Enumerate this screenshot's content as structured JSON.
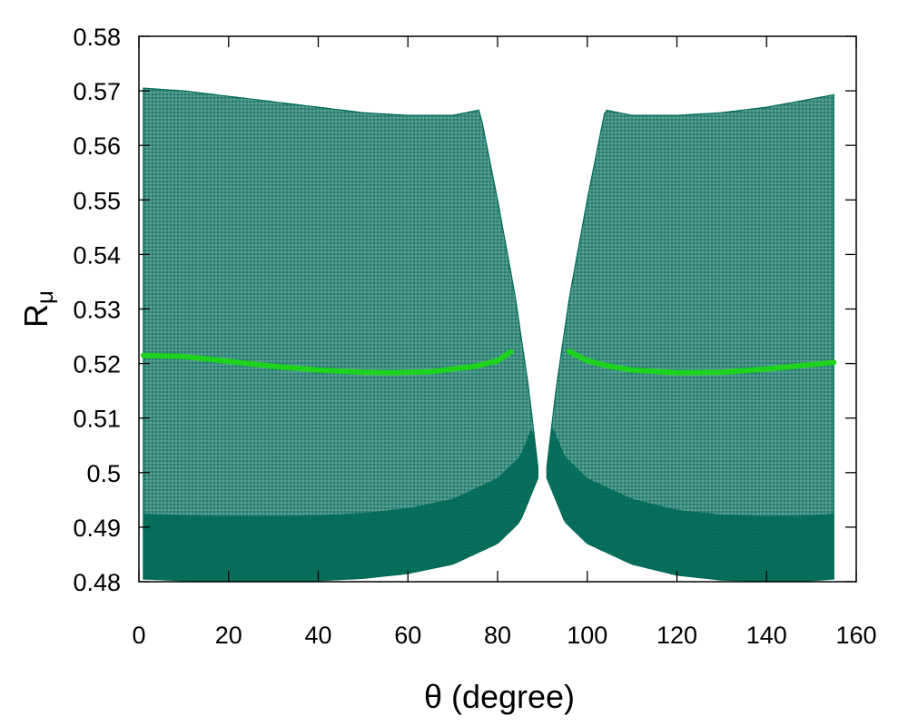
{
  "chart_data": {
    "type": "scatter",
    "title": "",
    "xlabel": "θ (degree)",
    "ylabel_main": "R",
    "ylabel_sub": "μ",
    "xlim": [
      0,
      160
    ],
    "ylim": [
      0.48,
      0.58
    ],
    "xticks": [
      0,
      20,
      40,
      60,
      80,
      100,
      120,
      140,
      160
    ],
    "yticks": [
      0.48,
      0.49,
      0.5,
      0.51,
      0.52,
      0.53,
      0.54,
      0.55,
      0.56,
      0.57,
      0.58
    ],
    "ytick_labels": [
      "0.48",
      "0.49",
      "0.5",
      "0.51",
      "0.52",
      "0.53",
      "0.54",
      "0.55",
      "0.56",
      "0.57",
      "0.58"
    ],
    "grid": false,
    "legend": "none",
    "colors": {
      "scatter": "#006957",
      "curve": "#1ed21e"
    },
    "series": [
      {
        "kind": "band",
        "marker": "+",
        "lower_x": [
          1,
          10,
          20,
          30,
          40,
          50,
          60,
          70,
          80,
          85,
          89
        ],
        "lower_y": [
          0.4805,
          0.4802,
          0.4801,
          0.4801,
          0.4802,
          0.4806,
          0.4815,
          0.4832,
          0.487,
          0.491,
          0.499
        ],
        "upper_x": [
          1,
          10,
          20,
          30,
          40,
          50,
          60,
          70,
          76,
          80,
          84,
          87,
          89
        ],
        "upper_y": [
          0.5705,
          0.57,
          0.569,
          0.568,
          0.567,
          0.566,
          0.5655,
          0.5655,
          0.5665,
          0.55,
          0.532,
          0.515,
          0.501
        ]
      },
      {
        "kind": "band",
        "marker": "+",
        "lower_x": [
          91,
          95,
          100,
          110,
          120,
          130,
          140,
          150,
          155
        ],
        "lower_y": [
          0.499,
          0.491,
          0.487,
          0.4832,
          0.4812,
          0.4803,
          0.4801,
          0.4802,
          0.4805
        ],
        "upper_x": [
          91,
          93,
          96,
          100,
          104,
          110,
          120,
          130,
          140,
          150,
          155
        ],
        "upper_y": [
          0.501,
          0.515,
          0.532,
          0.55,
          0.5665,
          0.5655,
          0.5655,
          0.566,
          0.567,
          0.5685,
          0.5693
        ]
      },
      {
        "kind": "line",
        "x": [
          1,
          10,
          20,
          30,
          40,
          50,
          57,
          65,
          75,
          80,
          83
        ],
        "y": [
          0.5215,
          0.5213,
          0.5204,
          0.5195,
          0.5188,
          0.5184,
          0.5183,
          0.5185,
          0.5195,
          0.5205,
          0.5222
        ]
      },
      {
        "kind": "line",
        "x": [
          96,
          100,
          105,
          110,
          120,
          130,
          140,
          150,
          155
        ],
        "y": [
          0.5222,
          0.5205,
          0.5195,
          0.5188,
          0.5183,
          0.5184,
          0.519,
          0.5198,
          0.5202
        ]
      }
    ]
  }
}
